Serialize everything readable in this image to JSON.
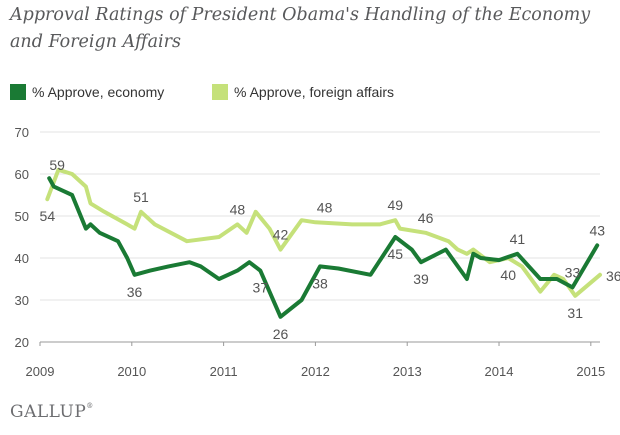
{
  "title": "Approval Ratings of President Obama's Handling of the Economy and Foreign Affairs",
  "brand": "GALLUP",
  "brand_mark": "®",
  "chart_data": {
    "type": "line",
    "title": "Approval Ratings of President Obama's Handling of the Economy and Foreign Affairs",
    "xlabel": "",
    "ylabel": "",
    "ylim": [
      20,
      70
    ],
    "yticks": [
      20,
      30,
      40,
      50,
      60,
      70
    ],
    "xlim": [
      2009,
      2015.1
    ],
    "xticks": [
      "2009",
      "2010",
      "2011",
      "2012",
      "2013",
      "2014",
      "2015"
    ],
    "grid": "horizontal",
    "legend": "top-left",
    "series": [
      {
        "name": "% Approve, economy",
        "color": "#1a7a34",
        "points": [
          [
            2009.1,
            59
          ],
          [
            2009.15,
            57
          ],
          [
            2009.25,
            56
          ],
          [
            2009.35,
            55
          ],
          [
            2009.5,
            47
          ],
          [
            2009.55,
            48
          ],
          [
            2009.65,
            46
          ],
          [
            2009.85,
            44
          ],
          [
            2009.95,
            40
          ],
          [
            2010.03,
            36
          ],
          [
            2010.2,
            37
          ],
          [
            2010.4,
            38
          ],
          [
            2010.63,
            39
          ],
          [
            2010.75,
            38
          ],
          [
            2010.95,
            35
          ],
          [
            2011.15,
            37
          ],
          [
            2011.28,
            39
          ],
          [
            2011.4,
            37
          ],
          [
            2011.62,
            26
          ],
          [
            2011.85,
            30
          ],
          [
            2012.05,
            38
          ],
          [
            2012.25,
            37.5
          ],
          [
            2012.6,
            36
          ],
          [
            2012.87,
            45
          ],
          [
            2013.05,
            42
          ],
          [
            2013.15,
            39
          ],
          [
            2013.42,
            42
          ],
          [
            2013.65,
            35
          ],
          [
            2013.72,
            41
          ],
          [
            2013.8,
            40
          ],
          [
            2014.0,
            39.5
          ],
          [
            2014.2,
            41
          ],
          [
            2014.45,
            35
          ],
          [
            2014.63,
            35
          ],
          [
            2014.8,
            33
          ],
          [
            2015.07,
            43
          ]
        ],
        "labels": [
          {
            "text": "59",
            "x": 2009.1,
            "y": 59,
            "pos": "above-right"
          },
          {
            "text": "36",
            "x": 2010.03,
            "y": 36,
            "pos": "below"
          },
          {
            "text": "37",
            "x": 2011.4,
            "y": 37,
            "pos": "below"
          },
          {
            "text": "26",
            "x": 2011.62,
            "y": 26,
            "pos": "below"
          },
          {
            "text": "38",
            "x": 2012.05,
            "y": 38,
            "pos": "below"
          },
          {
            "text": "45",
            "x": 2012.87,
            "y": 45,
            "pos": "below"
          },
          {
            "text": "39",
            "x": 2013.15,
            "y": 39,
            "pos": "below"
          },
          {
            "text": "41",
            "x": 2014.2,
            "y": 41,
            "pos": "above"
          },
          {
            "text": "33",
            "x": 2014.8,
            "y": 33,
            "pos": "above"
          },
          {
            "text": "43",
            "x": 2015.07,
            "y": 43,
            "pos": "above"
          }
        ]
      },
      {
        "name": "% Approve, foreign affairs",
        "color": "#c5e17a",
        "points": [
          [
            2009.08,
            54
          ],
          [
            2009.2,
            61
          ],
          [
            2009.35,
            60
          ],
          [
            2009.5,
            57
          ],
          [
            2009.55,
            53
          ],
          [
            2009.7,
            51
          ],
          [
            2009.95,
            48
          ],
          [
            2010.03,
            47
          ],
          [
            2010.1,
            51
          ],
          [
            2010.25,
            48
          ],
          [
            2010.6,
            44
          ],
          [
            2010.95,
            45
          ],
          [
            2011.15,
            48
          ],
          [
            2011.25,
            46
          ],
          [
            2011.35,
            51
          ],
          [
            2011.5,
            47
          ],
          [
            2011.62,
            42
          ],
          [
            2011.85,
            49
          ],
          [
            2012.0,
            48.5
          ],
          [
            2012.4,
            48
          ],
          [
            2012.7,
            48
          ],
          [
            2012.87,
            49
          ],
          [
            2012.92,
            47
          ],
          [
            2013.2,
            46
          ],
          [
            2013.45,
            44
          ],
          [
            2013.55,
            42
          ],
          [
            2013.65,
            41
          ],
          [
            2013.72,
            42
          ],
          [
            2013.9,
            39
          ],
          [
            2014.1,
            40
          ],
          [
            2014.25,
            38
          ],
          [
            2014.45,
            32
          ],
          [
            2014.6,
            36
          ],
          [
            2014.7,
            35
          ],
          [
            2014.83,
            31
          ],
          [
            2015.1,
            36
          ]
        ],
        "labels": [
          {
            "text": "54",
            "x": 2009.08,
            "y": 54,
            "pos": "below"
          },
          {
            "text": "51",
            "x": 2010.1,
            "y": 51,
            "pos": "above"
          },
          {
            "text": "48",
            "x": 2011.15,
            "y": 48,
            "pos": "above"
          },
          {
            "text": "42",
            "x": 2011.62,
            "y": 42,
            "pos": "above"
          },
          {
            "text": "48",
            "x": 2012.1,
            "y": 48.5,
            "pos": "above"
          },
          {
            "text": "49",
            "x": 2012.87,
            "y": 49,
            "pos": "above"
          },
          {
            "text": "46",
            "x": 2013.2,
            "y": 46,
            "pos": "above"
          },
          {
            "text": "40",
            "x": 2014.1,
            "y": 40,
            "pos": "below"
          },
          {
            "text": "31",
            "x": 2014.83,
            "y": 31,
            "pos": "below"
          },
          {
            "text": "36",
            "x": 2015.1,
            "y": 36,
            "pos": "right"
          }
        ]
      }
    ]
  }
}
